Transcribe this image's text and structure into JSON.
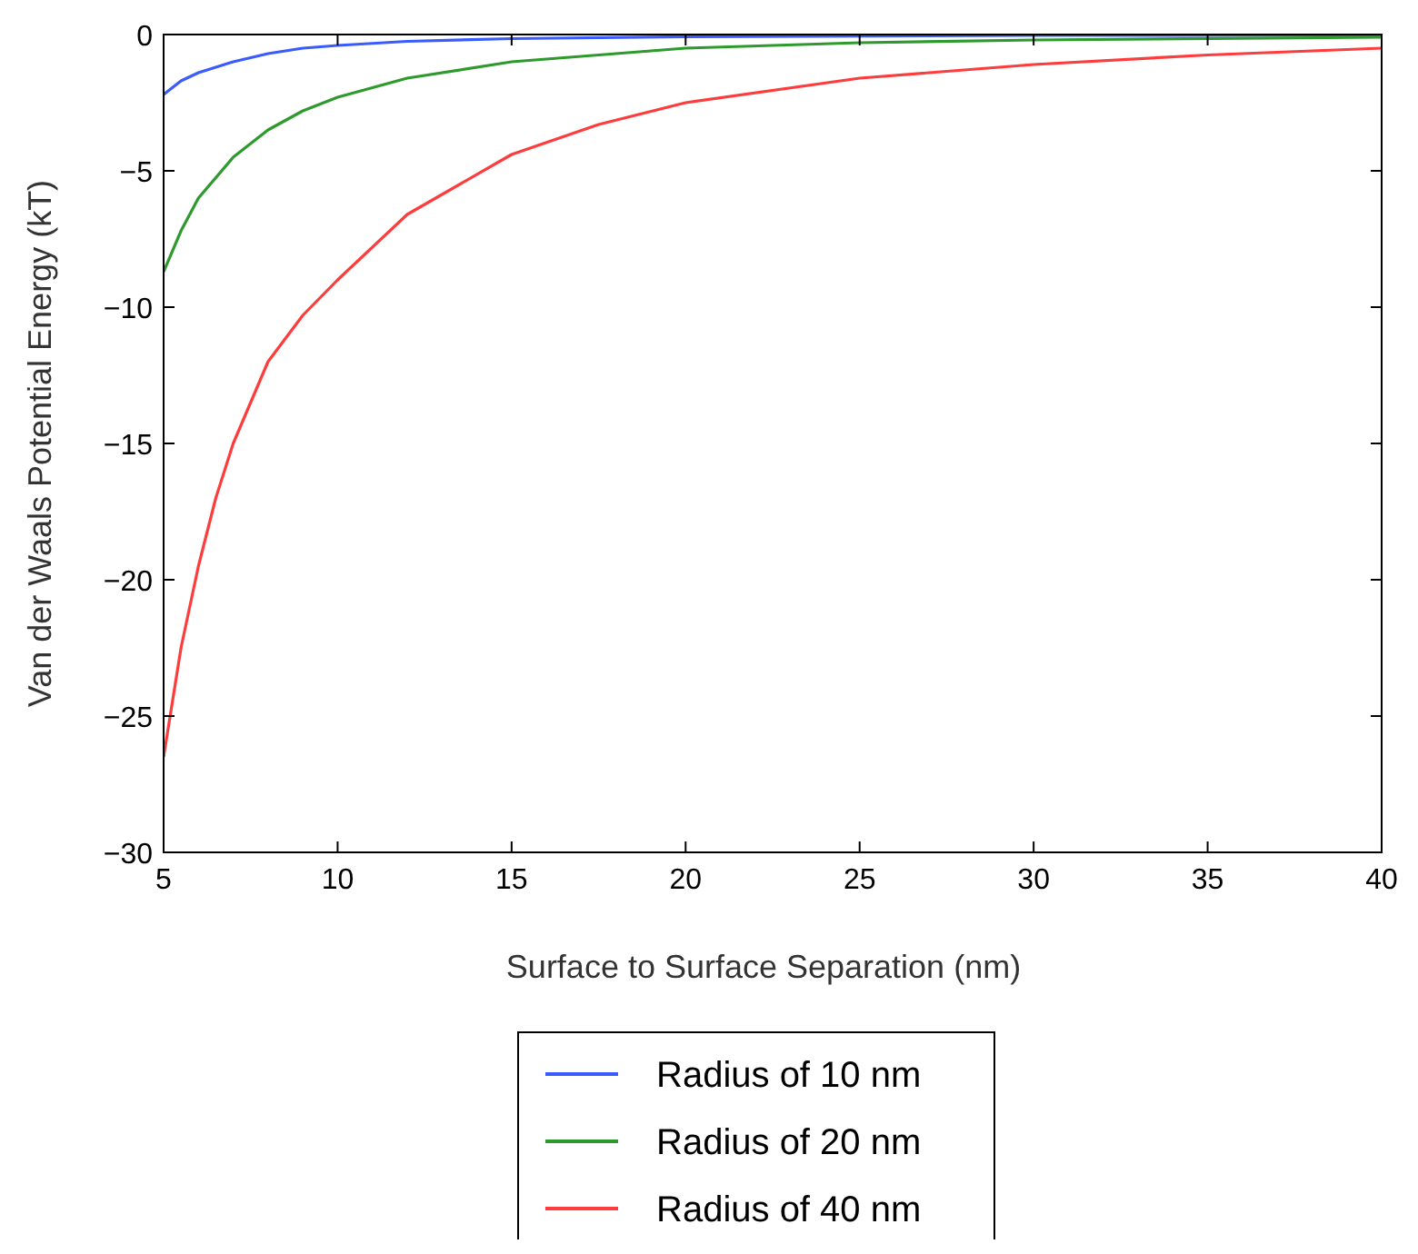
{
  "chart_data": {
    "type": "line",
    "xlabel": "Surface to Surface Separation (nm)",
    "ylabel": "Van der Waals Potential Energy (kT)",
    "xlim": [
      5,
      40
    ],
    "ylim": [
      -30,
      0
    ],
    "xticks": [
      5,
      10,
      15,
      20,
      25,
      30,
      35,
      40
    ],
    "yticks": [
      -30,
      -25,
      -20,
      -15,
      -10,
      -5,
      0
    ],
    "grid": false,
    "legend": "bottom",
    "line_style": "solid",
    "marker": "none",
    "series": [
      {
        "name": "Radius of 10 nm",
        "color": "#3a5bfd",
        "x": [
          5,
          5.5,
          6,
          7,
          8,
          9,
          10,
          12,
          15,
          20,
          30,
          40
        ],
        "values": [
          -2.2,
          -1.7,
          -1.4,
          -1.0,
          -0.7,
          -0.5,
          -0.4,
          -0.25,
          -0.15,
          -0.08,
          -0.03,
          -0.02
        ]
      },
      {
        "name": "Radius of 20 nm",
        "color": "#2e9a2e",
        "x": [
          5,
          5.5,
          6,
          7,
          8,
          9,
          10,
          12,
          15,
          20,
          25,
          30,
          40
        ],
        "values": [
          -8.7,
          -7.2,
          -6.0,
          -4.5,
          -3.5,
          -2.8,
          -2.3,
          -1.6,
          -1.0,
          -0.5,
          -0.3,
          -0.2,
          -0.1
        ]
      },
      {
        "name": "Radius of 40 nm",
        "color": "#fd3d3d",
        "x": [
          5,
          5.5,
          6,
          6.5,
          7,
          8,
          9,
          10,
          12,
          15,
          17.5,
          20,
          25,
          30,
          35,
          40
        ],
        "values": [
          -26.5,
          -22.5,
          -19.5,
          -17,
          -15,
          -12,
          -10.3,
          -9,
          -6.6,
          -4.4,
          -3.3,
          -2.5,
          -1.6,
          -1.1,
          -0.75,
          -0.5
        ]
      }
    ]
  }
}
